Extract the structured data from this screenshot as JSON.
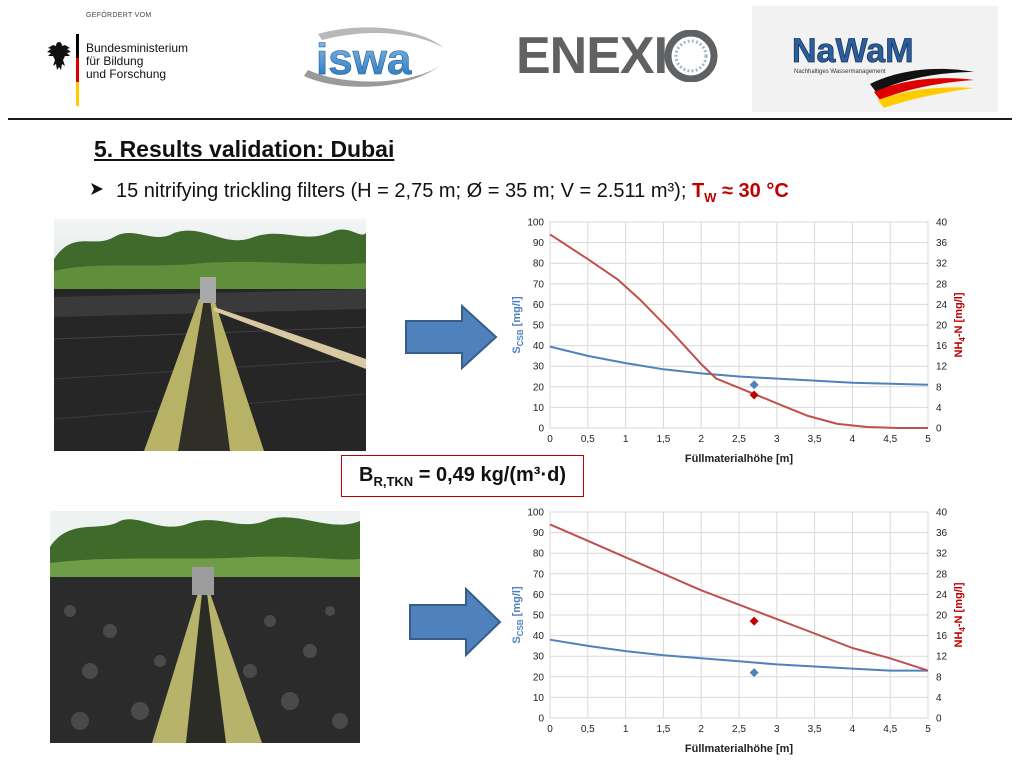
{
  "header": {
    "bmbf": {
      "funded_by": "GEFÖRDERT VOM",
      "ministry_lines": [
        "Bundesministerium",
        "für Bildung",
        "und Forschung"
      ]
    },
    "isva_logo_text": "iswa",
    "enexio_logo_text": "ENEXI",
    "nawam": {
      "logo_text": "NaWaM",
      "tagline": "Nachhaltiges Wassermanagement"
    }
  },
  "slide": {
    "title": "5. Results validation: Dubai",
    "bullet_text": "15 nitrifying trickling filters (H = 2,75 m; Ø = 35 m; V = 2.511 m³); ",
    "tw_label": "T",
    "tw_sub": "W",
    "tw_value": " ≈ 30 °C",
    "load_label": "B",
    "load_sub": "R,TKN",
    "load_value": " = 0,49 kg/(m³·d)"
  },
  "colors": {
    "blue_series": "#4f81bd",
    "red_series": "#c0504d",
    "arrow_fill": "#4f81bd",
    "arrow_stroke": "#385d8a",
    "highlight_red": "#c00000"
  },
  "chart_data": [
    {
      "type": "line",
      "xlabel": "Füllmaterialhöhe [m]",
      "ylabel_left_main": "S",
      "ylabel_left_sub": "CSB",
      "ylabel_left_unit": " [mg/l]",
      "ylabel_right_main": "NH",
      "ylabel_right_sub": "4",
      "ylabel_right_unit": "-N [mg/l]",
      "xlim": [
        0,
        5
      ],
      "ylim_left": [
        0,
        100
      ],
      "ylim_right": [
        0,
        40
      ],
      "x_ticks": [
        "0",
        "0,5",
        "1",
        "1,5",
        "2",
        "2,5",
        "3",
        "3,5",
        "4",
        "4,5",
        "5"
      ],
      "y_left_ticks": [
        "0",
        "10",
        "20",
        "30",
        "40",
        "50",
        "60",
        "70",
        "80",
        "90",
        "100"
      ],
      "y_right_ticks": [
        "0",
        "4",
        "8",
        "12",
        "16",
        "20",
        "24",
        "28",
        "32",
        "36",
        "40"
      ],
      "grid": true,
      "series": [
        {
          "axis": "left",
          "color": "#4f81bd",
          "x": [
            0,
            0.5,
            1,
            1.5,
            2,
            2.5,
            3,
            3.5,
            4,
            4.5,
            5
          ],
          "y": [
            39.5,
            35,
            31.5,
            28.5,
            26.5,
            25,
            24,
            23,
            22,
            21.5,
            21
          ]
        },
        {
          "axis": "right",
          "color": "#c0504d",
          "x": [
            0,
            0.5,
            0.9,
            1.2,
            1.6,
            2.0,
            2.2,
            2.6,
            3.0,
            3.4,
            3.8,
            4.2,
            4.6,
            5.0
          ],
          "y": [
            37.6,
            32.8,
            28.8,
            24.8,
            18.8,
            12.4,
            9.6,
            7.2,
            4.8,
            2.4,
            0.8,
            0.2,
            0,
            0
          ]
        }
      ],
      "markers": [
        {
          "axis": "left",
          "color": "#4f81bd",
          "x": 2.7,
          "y": 21
        },
        {
          "axis": "left",
          "color": "#c00000",
          "x": 2.7,
          "y": 16
        }
      ]
    },
    {
      "type": "line",
      "xlabel": "Füllmaterialhöhe [m]",
      "ylabel_left_main": "S",
      "ylabel_left_sub": "CSB",
      "ylabel_left_unit": " [mg/l]",
      "ylabel_right_main": "NH",
      "ylabel_right_sub": "4",
      "ylabel_right_unit": "-N [mg/l]",
      "xlim": [
        0,
        5
      ],
      "ylim_left": [
        0,
        100
      ],
      "ylim_right": [
        0,
        40
      ],
      "x_ticks": [
        "0",
        "0,5",
        "1",
        "1,5",
        "2",
        "2,5",
        "3",
        "3,5",
        "4",
        "4,5",
        "5"
      ],
      "y_left_ticks": [
        "0",
        "10",
        "20",
        "30",
        "40",
        "50",
        "60",
        "70",
        "80",
        "90",
        "100"
      ],
      "y_right_ticks": [
        "0",
        "4",
        "8",
        "12",
        "16",
        "20",
        "24",
        "28",
        "32",
        "36",
        "40"
      ],
      "grid": true,
      "series": [
        {
          "axis": "left",
          "color": "#4f81bd",
          "x": [
            0,
            0.5,
            1,
            1.5,
            2,
            2.5,
            3,
            3.5,
            4,
            4.5,
            5
          ],
          "y": [
            38,
            35,
            32.5,
            30.5,
            29,
            27.5,
            26,
            25,
            24,
            23,
            23
          ]
        },
        {
          "axis": "right",
          "color": "#c0504d",
          "x": [
            0,
            0.5,
            1,
            1.5,
            2,
            2.5,
            3,
            3.5,
            4,
            4.5,
            5
          ],
          "y": [
            37.6,
            34.4,
            31.2,
            28,
            24.8,
            22,
            19.2,
            16.4,
            13.6,
            11.6,
            9.2
          ]
        }
      ],
      "markers": [
        {
          "axis": "left",
          "color": "#c00000",
          "x": 2.7,
          "y": 47
        },
        {
          "axis": "left",
          "color": "#4f81bd",
          "x": 2.7,
          "y": 22
        }
      ]
    }
  ]
}
